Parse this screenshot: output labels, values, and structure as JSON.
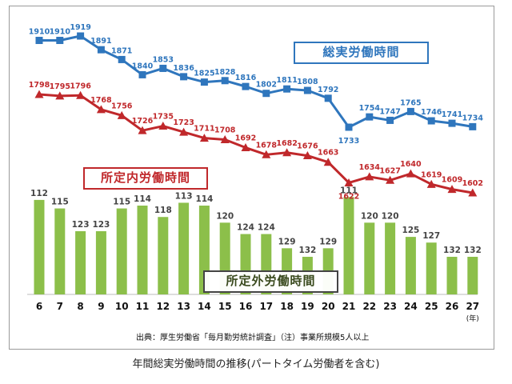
{
  "chart_data": {
    "type": "bar+line",
    "categories": [
      "6",
      "7",
      "8",
      "9",
      "10",
      "11",
      "12",
      "13",
      "14",
      "15",
      "16",
      "17",
      "18",
      "19",
      "20",
      "21",
      "22",
      "23",
      "24",
      "25",
      "26",
      "27"
    ],
    "x_unit": "(年)",
    "series": [
      {
        "name": "総実労働時間",
        "kind": "line",
        "marker": "square",
        "color": "#2f76bd",
        "values": [
          1910,
          1910,
          1919,
          1891,
          1871,
          1840,
          1853,
          1836,
          1825,
          1828,
          1816,
          1802,
          1811,
          1808,
          1792,
          1733,
          1754,
          1747,
          1765,
          1746,
          1741,
          1734
        ]
      },
      {
        "name": "所定内労働時間",
        "kind": "line",
        "marker": "triangle",
        "color": "#c0282b",
        "values": [
          1798,
          1795,
          1796,
          1768,
          1756,
          1726,
          1735,
          1723,
          1711,
          1708,
          1692,
          1678,
          1682,
          1676,
          1663,
          1622,
          1634,
          1627,
          1640,
          1619,
          1609,
          1602
        ]
      },
      {
        "name": "所定外労働時間",
        "kind": "bar",
        "color": "#8cbf4a",
        "values": [
          112,
          115,
          123,
          123,
          115,
          114,
          118,
          113,
          114,
          120,
          124,
          124,
          129,
          132,
          129,
          111,
          120,
          120,
          125,
          127,
          132,
          132
        ]
      }
    ],
    "source": "出典：厚生労働省「毎月勤労統計調査」（注）事業所規模5人以上",
    "caption": "年間総実労働時間の推移(パートタイム労働者を含む)"
  }
}
